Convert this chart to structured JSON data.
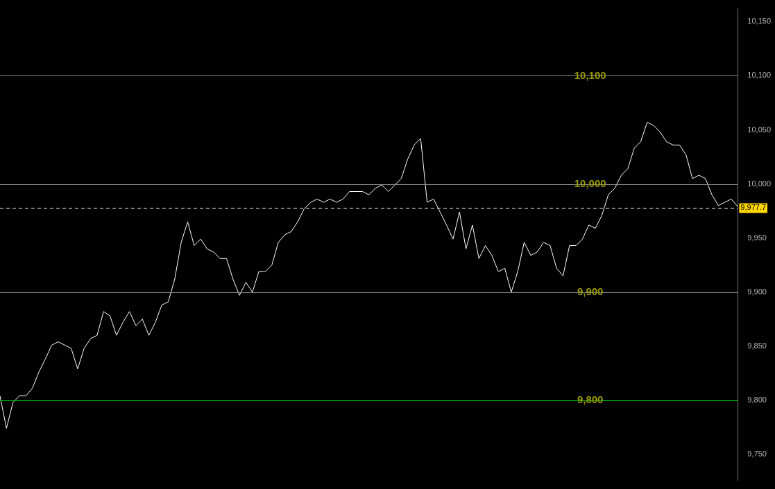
{
  "chart_data": {
    "type": "line",
    "categories": [
      null,
      null,
      null,
      null,
      null,
      null,
      null,
      null,
      null,
      null,
      null,
      null,
      null,
      null,
      null,
      null,
      null,
      null,
      null,
      null,
      null,
      null,
      null,
      null,
      null,
      null,
      null,
      null,
      null,
      null,
      null,
      null,
      null,
      null,
      null,
      null,
      null,
      null,
      null,
      null,
      null,
      null,
      null,
      null,
      null,
      null,
      null,
      null,
      null,
      null,
      null,
      null,
      null,
      null,
      null,
      null,
      null,
      null,
      null,
      null,
      null,
      null,
      null,
      null,
      null,
      null,
      null,
      null,
      null,
      null,
      null,
      null,
      null,
      null,
      null,
      null,
      null,
      null,
      null,
      null,
      null,
      null,
      null,
      null,
      null,
      null,
      null,
      null,
      null,
      null,
      null,
      null,
      null,
      null,
      null,
      null,
      null,
      null,
      null,
      null,
      null,
      null,
      null,
      null,
      null,
      null,
      null,
      null,
      null,
      null,
      null,
      null,
      null,
      null,
      null
    ],
    "series": [
      {
        "color": "#ffffff",
        "values": [
          9804,
          9774,
          9798,
          9804,
          9804,
          9811,
          9826,
          9838,
          9851,
          9854,
          9851,
          9848,
          9829,
          9848,
          9857,
          9860,
          9882,
          9878,
          9860,
          9872,
          9882,
          9869,
          9875,
          9860,
          9872,
          9888,
          9891,
          9912,
          9946,
          9965,
          9943,
          9949,
          9940,
          9937,
          9931,
          9931,
          9912,
          9897,
          9909,
          9900,
          9919,
          9919,
          9925,
          9946,
          9953,
          9956,
          9965,
          9977,
          9983,
          9986,
          9983,
          9986,
          9983,
          9986,
          9993,
          9993,
          9993,
          9990,
          9996,
          9999,
          9993,
          9999,
          10005,
          10023,
          10036,
          10042,
          9983,
          9986,
          9974,
          9962,
          9949,
          9974,
          9940,
          9962,
          9931,
          9943,
          9934,
          9919,
          9922,
          9900,
          9919,
          9946,
          9934,
          9937,
          9946,
          9943,
          9922,
          9915,
          9943,
          9943,
          9949,
          9962,
          9959,
          9971,
          9990,
          9996,
          10008,
          10014,
          10033,
          10039,
          10057,
          10054,
          10048,
          10039,
          10036,
          10036,
          10027,
          10005,
          10008,
          10005,
          9990,
          9980,
          9983,
          9986,
          9979
        ]
      }
    ],
    "ylim": [
      9726,
      10162
    ],
    "yticks": [
      {
        "value": 9750,
        "label": "9,750"
      },
      {
        "value": 9800,
        "label": "9,800"
      },
      {
        "value": 9850,
        "label": "9,850"
      },
      {
        "value": 9900,
        "label": "9,900"
      },
      {
        "value": 9950,
        "label": "9,950"
      },
      {
        "value": 10000,
        "label": "10,000"
      },
      {
        "value": 10050,
        "label": "10,050"
      },
      {
        "value": 10100,
        "label": "10,100"
      },
      {
        "value": 10150,
        "label": "10,150"
      }
    ],
    "ref_lines": [
      {
        "axis": "y",
        "value": 10100,
        "label": "10,100",
        "color": "#8c8c8c"
      },
      {
        "axis": "y",
        "value": 10000,
        "label": "10,000",
        "color": "#8c8c8c"
      },
      {
        "axis": "y",
        "value": 9900,
        "label": "9,900",
        "color": "#8c8c8c"
      },
      {
        "axis": "y",
        "value": 9800,
        "label": "9,800",
        "color": "#00c000"
      },
      {
        "axis": "y",
        "value": 9977.7,
        "label": "9,977.7",
        "color": "#ffffff",
        "line_style": "dashed"
      }
    ],
    "grid": false,
    "legend": false,
    "tick_labels": "y",
    "marker": "none",
    "line_style": "solid"
  }
}
